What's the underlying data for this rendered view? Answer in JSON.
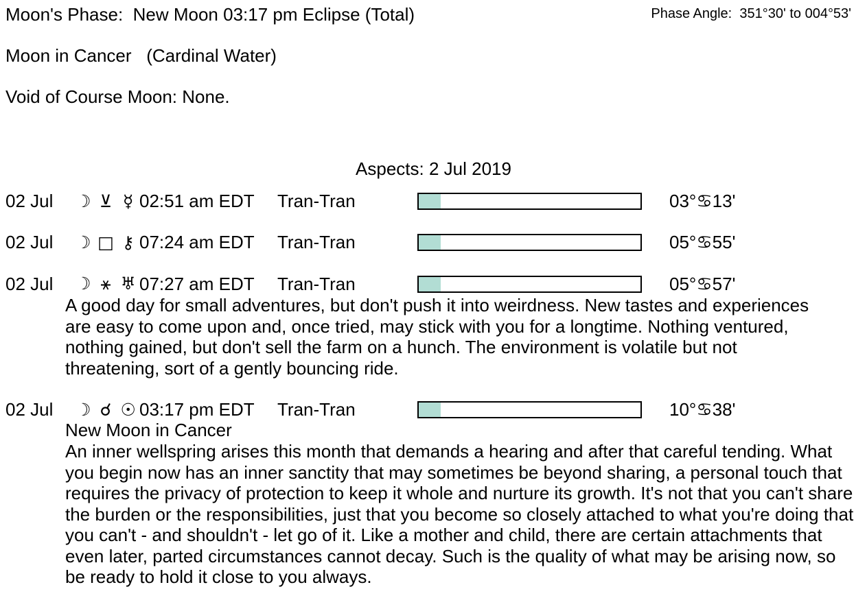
{
  "colors": {
    "background": "#ffffff",
    "text": "#000000",
    "bar_border": "#000000",
    "bar_fill": "#b2ddd4"
  },
  "header": {
    "moons_phase": "Moon's Phase:  New Moon 03:17 pm Eclipse (Total)",
    "phase_angle": "Phase Angle:  351°30' to 004°53'",
    "moon_sign": "Moon in Cancer   (Cardinal Water)",
    "void_of_course": "Void of Course Moon: None."
  },
  "aspects": {
    "title": "Aspects: 2 Jul 2019",
    "rows": [
      {
        "date": "02 Jul",
        "body1_glyph": "☽",
        "body1_name": "moon",
        "aspect_glyph": "⊻",
        "aspect_name": "quincunx",
        "body2_glyph": "☿",
        "body2_name": "mercury",
        "time": "02:51 am EDT",
        "type": "Tran-Tran",
        "fill_percent": 10,
        "degree": "03°♋13'",
        "note": "",
        "description": ""
      },
      {
        "date": "02 Jul",
        "body1_glyph": "☽",
        "body1_name": "moon",
        "aspect_glyph": "□",
        "aspect_name": "square",
        "body2_glyph": "⚷",
        "body2_name": "chiron",
        "time": "07:24 am EDT",
        "type": "Tran-Tran",
        "fill_percent": 10,
        "degree": "05°♋55'",
        "note": "",
        "description": ""
      },
      {
        "date": "02 Jul",
        "body1_glyph": "☽",
        "body1_name": "moon",
        "aspect_glyph": "⚹",
        "aspect_name": "sextile",
        "body2_glyph": "♅",
        "body2_name": "uranus",
        "time": "07:27 am EDT",
        "type": "Tran-Tran",
        "fill_percent": 10,
        "degree": "05°♋57'",
        "note": "",
        "description": "A good day for small adventures, but don't push it into weirdness. New tastes and experiences are easy to come upon and, once tried, may stick with you for a longtime. Nothing ventured, nothing gained, but don't sell the farm on a hunch. The environment is volatile but not threatening, sort of a gently bouncing ride."
      },
      {
        "date": "02 Jul",
        "body1_glyph": "☽",
        "body1_name": "moon",
        "aspect_glyph": "☌",
        "aspect_name": "conjunction",
        "body2_glyph": "☉",
        "body2_name": "sun",
        "time": "03:17 pm EDT",
        "type": "Tran-Tran",
        "fill_percent": 10,
        "degree": "10°♋38'",
        "note": "New Moon in Cancer",
        "description": "An inner wellspring arises this month that demands a hearing and after that careful tending. What you begin now has an inner sanctity that may sometimes be beyond sharing, a personal touch that requires the privacy of protection to keep it whole and nurture its growth. It's not that you can't share the burden or the responsibilities, just that you become so closely attached to what you're doing that you can't - and shouldn't - let go of it. Like a mother and child, there are certain attachments that even later, parted circumstances cannot decay. Such is the quality of what may be arising now, so be ready to hold it close to you always."
      }
    ]
  }
}
